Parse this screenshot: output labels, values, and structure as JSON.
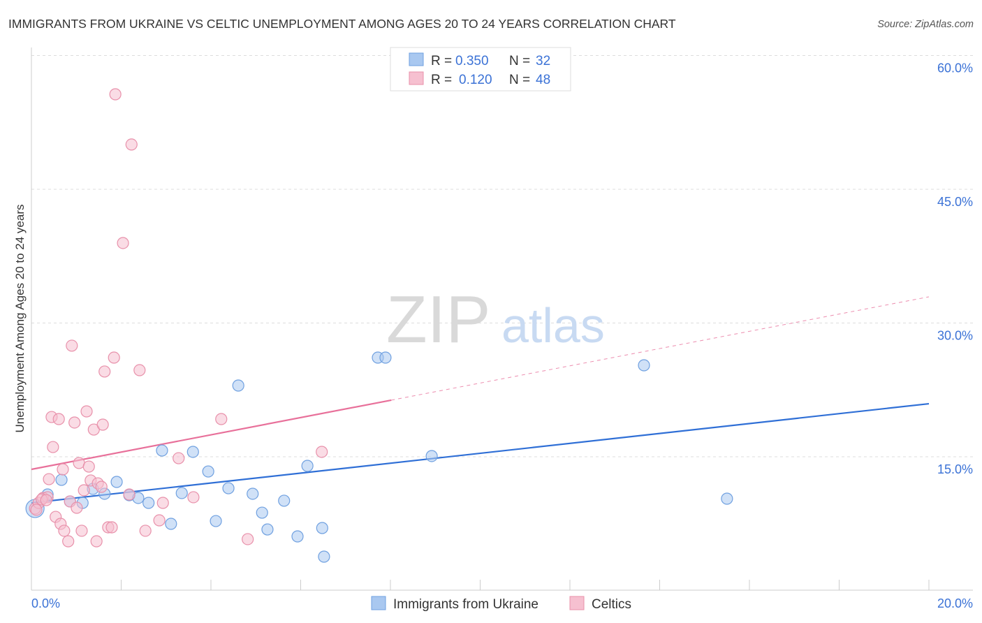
{
  "chart_data": {
    "type": "scatter",
    "title": "IMMIGRANTS FROM UKRAINE VS CELTIC UNEMPLOYMENT AMONG AGES 20 TO 24 YEARS CORRELATION CHART",
    "source": "Source: ZipAtlas.com",
    "xlabel": "",
    "ylabel": "Unemployment Among Ages 20 to 24 years",
    "xlim": [
      0,
      20
    ],
    "ylim": [
      0,
      62
    ],
    "x_tick_labels": [
      "0.0%",
      "20.0%"
    ],
    "y_ticks": [
      15,
      30,
      45,
      60
    ],
    "y_tick_labels": [
      "15.0%",
      "30.0%",
      "45.0%",
      "60.0%"
    ],
    "grid": true,
    "legend_position": "top-center",
    "watermark": "ZIPatlas",
    "series": [
      {
        "name": "Immigrants from Ukraine",
        "color": "#6fa0e0",
        "fill": "#a9c8f0",
        "line_color": "#2f6fd6",
        "R": "0.350",
        "N": "32",
        "trend": {
          "x0": 0,
          "y0": 9.83,
          "x1": 20,
          "y1": 20.95,
          "solid_until": 20
        },
        "points": [
          [
            0.08,
            9.2
          ],
          [
            0.36,
            10.77
          ],
          [
            0.67,
            12.41
          ],
          [
            0.86,
            9.99
          ],
          [
            1.14,
            9.83
          ],
          [
            1.37,
            11.4
          ],
          [
            1.63,
            10.85
          ],
          [
            1.9,
            12.18
          ],
          [
            2.18,
            10.69
          ],
          [
            2.38,
            10.38
          ],
          [
            2.61,
            9.83
          ],
          [
            2.91,
            15.7
          ],
          [
            3.11,
            7.48
          ],
          [
            3.35,
            10.93
          ],
          [
            3.6,
            15.55
          ],
          [
            3.94,
            13.35
          ],
          [
            4.11,
            7.79
          ],
          [
            4.39,
            11.47
          ],
          [
            4.61,
            22.99
          ],
          [
            4.93,
            10.85
          ],
          [
            5.14,
            8.73
          ],
          [
            5.26,
            6.85
          ],
          [
            5.63,
            10.07
          ],
          [
            5.93,
            6.07
          ],
          [
            6.15,
            13.98
          ],
          [
            6.48,
            7.01
          ],
          [
            6.52,
            3.8
          ],
          [
            7.72,
            26.12
          ],
          [
            7.89,
            26.12
          ],
          [
            8.92,
            15.08
          ],
          [
            13.65,
            25.26
          ],
          [
            15.5,
            10.3
          ]
        ]
      },
      {
        "name": "Celtics",
        "color": "#e890aa",
        "fill": "#f6c0d0",
        "line_color": "#e8709a",
        "R": "0.120",
        "N": "48",
        "trend": {
          "x0": 0,
          "y0": 13.59,
          "x1": 20,
          "y1": 32.94,
          "solid_until": 8.02
        },
        "points": [
          [
            0.08,
            9.2
          ],
          [
            0.16,
            9.83
          ],
          [
            0.26,
            10.38
          ],
          [
            0.36,
            10.46
          ],
          [
            0.39,
            12.49
          ],
          [
            0.45,
            19.46
          ],
          [
            0.54,
            8.26
          ],
          [
            0.61,
            19.23
          ],
          [
            0.65,
            7.48
          ],
          [
            0.73,
            6.7
          ],
          [
            0.82,
            5.52
          ],
          [
            0.86,
            9.99
          ],
          [
            0.9,
            27.46
          ],
          [
            0.96,
            18.84
          ],
          [
            1.01,
            9.28
          ],
          [
            1.06,
            14.3
          ],
          [
            1.12,
            6.7
          ],
          [
            1.17,
            11.24
          ],
          [
            1.23,
            20.09
          ],
          [
            1.28,
            13.9
          ],
          [
            1.32,
            12.34
          ],
          [
            1.39,
            18.05
          ],
          [
            1.45,
            5.52
          ],
          [
            1.48,
            12.02
          ],
          [
            1.59,
            18.6
          ],
          [
            1.63,
            24.56
          ],
          [
            1.71,
            7.09
          ],
          [
            1.79,
            7.09
          ],
          [
            1.84,
            26.12
          ],
          [
            1.87,
            55.65
          ],
          [
            2.04,
            38.97
          ],
          [
            2.18,
            10.77
          ],
          [
            2.23,
            50.02
          ],
          [
            2.41,
            24.71
          ],
          [
            2.54,
            6.7
          ],
          [
            2.85,
            7.87
          ],
          [
            2.93,
            9.83
          ],
          [
            3.28,
            14.84
          ],
          [
            3.61,
            10.46
          ],
          [
            4.23,
            19.23
          ],
          [
            4.82,
            5.76
          ],
          [
            6.47,
            15.55
          ],
          [
            0.48,
            16.09
          ],
          [
            0.7,
            13.59
          ],
          [
            0.23,
            10.22
          ],
          [
            1.56,
            11.63
          ],
          [
            0.11,
            9.05
          ],
          [
            0.33,
            10.14
          ]
        ]
      }
    ]
  },
  "legend": {
    "r_label": "R =",
    "n_label": "N ="
  }
}
